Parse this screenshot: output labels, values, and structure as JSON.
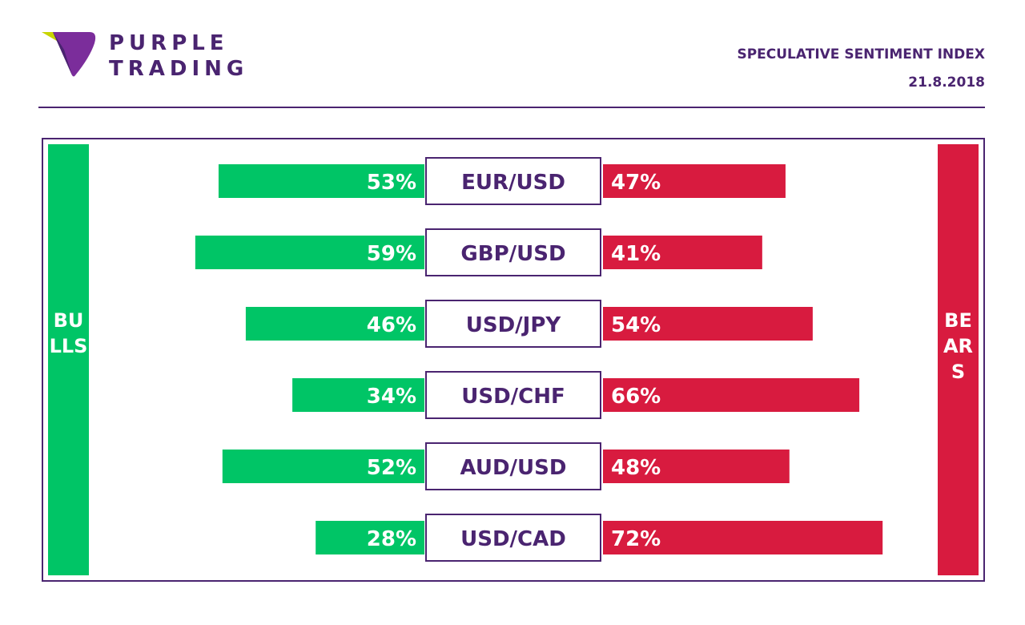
{
  "header": {
    "brand_line1": "PURPLE",
    "brand_line2": "TRADING",
    "index_title": "SPECULATIVE SENTIMENT INDEX",
    "date": "21.8.2018"
  },
  "sides": {
    "bulls_label": "BULLS",
    "bears_label": "BEARS"
  },
  "colors": {
    "brand_purple": "#4a2470",
    "bulls_green": "#00c566",
    "bears_red": "#d81b3f",
    "logo_yellow": "#c8d400",
    "logo_purple": "#7b2d9b"
  },
  "chart_data": {
    "type": "bar",
    "title": "SPECULATIVE SENTIMENT INDEX",
    "subtitle": "21.8.2018",
    "categories": [
      "EUR/USD",
      "GBP/USD",
      "USD/JPY",
      "USD/CHF",
      "AUD/USD",
      "USD/CAD"
    ],
    "series": [
      {
        "name": "BULLS",
        "values": [
          53,
          59,
          46,
          34,
          52,
          28
        ],
        "labels": [
          "53%",
          "59%",
          "46%",
          "34%",
          "52%",
          "28%"
        ]
      },
      {
        "name": "BEARS",
        "values": [
          47,
          41,
          54,
          66,
          48,
          72
        ],
        "labels": [
          "47%",
          "41%",
          "54%",
          "66%",
          "48%",
          "72%"
        ]
      }
    ],
    "unit": "%"
  }
}
